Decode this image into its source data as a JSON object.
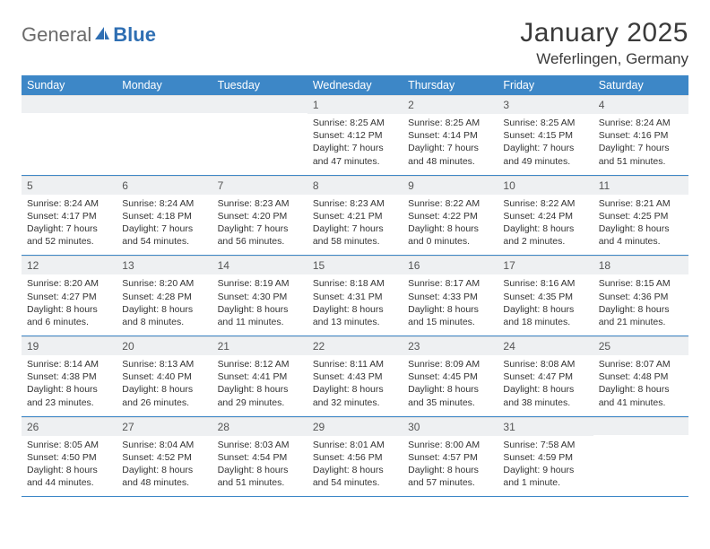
{
  "logo": {
    "general": "General",
    "blue": "Blue"
  },
  "title": "January 2025",
  "location": "Weferlingen, Germany",
  "colors": {
    "header_bg": "#3d87c7",
    "header_text": "#ffffff",
    "daynum_bg": "#eef0f2",
    "text": "#333333",
    "rule": "#3d87c7",
    "logo_gray": "#6b6b6b",
    "logo_blue": "#2f6fb3"
  },
  "fonts": {
    "title_size_pt": 30,
    "location_size_pt": 17,
    "dow_size_pt": 12.5,
    "daynum_size_pt": 12,
    "body_size_pt": 10.5
  },
  "days_of_week": [
    "Sunday",
    "Monday",
    "Tuesday",
    "Wednesday",
    "Thursday",
    "Friday",
    "Saturday"
  ],
  "weeks": [
    [
      {
        "n": "",
        "sr": "",
        "ss": "",
        "dl": ""
      },
      {
        "n": "",
        "sr": "",
        "ss": "",
        "dl": ""
      },
      {
        "n": "",
        "sr": "",
        "ss": "",
        "dl": ""
      },
      {
        "n": "1",
        "sr": "8:25 AM",
        "ss": "4:12 PM",
        "dl": "7 hours and 47 minutes."
      },
      {
        "n": "2",
        "sr": "8:25 AM",
        "ss": "4:14 PM",
        "dl": "7 hours and 48 minutes."
      },
      {
        "n": "3",
        "sr": "8:25 AM",
        "ss": "4:15 PM",
        "dl": "7 hours and 49 minutes."
      },
      {
        "n": "4",
        "sr": "8:24 AM",
        "ss": "4:16 PM",
        "dl": "7 hours and 51 minutes."
      }
    ],
    [
      {
        "n": "5",
        "sr": "8:24 AM",
        "ss": "4:17 PM",
        "dl": "7 hours and 52 minutes."
      },
      {
        "n": "6",
        "sr": "8:24 AM",
        "ss": "4:18 PM",
        "dl": "7 hours and 54 minutes."
      },
      {
        "n": "7",
        "sr": "8:23 AM",
        "ss": "4:20 PM",
        "dl": "7 hours and 56 minutes."
      },
      {
        "n": "8",
        "sr": "8:23 AM",
        "ss": "4:21 PM",
        "dl": "7 hours and 58 minutes."
      },
      {
        "n": "9",
        "sr": "8:22 AM",
        "ss": "4:22 PM",
        "dl": "8 hours and 0 minutes."
      },
      {
        "n": "10",
        "sr": "8:22 AM",
        "ss": "4:24 PM",
        "dl": "8 hours and 2 minutes."
      },
      {
        "n": "11",
        "sr": "8:21 AM",
        "ss": "4:25 PM",
        "dl": "8 hours and 4 minutes."
      }
    ],
    [
      {
        "n": "12",
        "sr": "8:20 AM",
        "ss": "4:27 PM",
        "dl": "8 hours and 6 minutes."
      },
      {
        "n": "13",
        "sr": "8:20 AM",
        "ss": "4:28 PM",
        "dl": "8 hours and 8 minutes."
      },
      {
        "n": "14",
        "sr": "8:19 AM",
        "ss": "4:30 PM",
        "dl": "8 hours and 11 minutes."
      },
      {
        "n": "15",
        "sr": "8:18 AM",
        "ss": "4:31 PM",
        "dl": "8 hours and 13 minutes."
      },
      {
        "n": "16",
        "sr": "8:17 AM",
        "ss": "4:33 PM",
        "dl": "8 hours and 15 minutes."
      },
      {
        "n": "17",
        "sr": "8:16 AM",
        "ss": "4:35 PM",
        "dl": "8 hours and 18 minutes."
      },
      {
        "n": "18",
        "sr": "8:15 AM",
        "ss": "4:36 PM",
        "dl": "8 hours and 21 minutes."
      }
    ],
    [
      {
        "n": "19",
        "sr": "8:14 AM",
        "ss": "4:38 PM",
        "dl": "8 hours and 23 minutes."
      },
      {
        "n": "20",
        "sr": "8:13 AM",
        "ss": "4:40 PM",
        "dl": "8 hours and 26 minutes."
      },
      {
        "n": "21",
        "sr": "8:12 AM",
        "ss": "4:41 PM",
        "dl": "8 hours and 29 minutes."
      },
      {
        "n": "22",
        "sr": "8:11 AM",
        "ss": "4:43 PM",
        "dl": "8 hours and 32 minutes."
      },
      {
        "n": "23",
        "sr": "8:09 AM",
        "ss": "4:45 PM",
        "dl": "8 hours and 35 minutes."
      },
      {
        "n": "24",
        "sr": "8:08 AM",
        "ss": "4:47 PM",
        "dl": "8 hours and 38 minutes."
      },
      {
        "n": "25",
        "sr": "8:07 AM",
        "ss": "4:48 PM",
        "dl": "8 hours and 41 minutes."
      }
    ],
    [
      {
        "n": "26",
        "sr": "8:05 AM",
        "ss": "4:50 PM",
        "dl": "8 hours and 44 minutes."
      },
      {
        "n": "27",
        "sr": "8:04 AM",
        "ss": "4:52 PM",
        "dl": "8 hours and 48 minutes."
      },
      {
        "n": "28",
        "sr": "8:03 AM",
        "ss": "4:54 PM",
        "dl": "8 hours and 51 minutes."
      },
      {
        "n": "29",
        "sr": "8:01 AM",
        "ss": "4:56 PM",
        "dl": "8 hours and 54 minutes."
      },
      {
        "n": "30",
        "sr": "8:00 AM",
        "ss": "4:57 PM",
        "dl": "8 hours and 57 minutes."
      },
      {
        "n": "31",
        "sr": "7:58 AM",
        "ss": "4:59 PM",
        "dl": "9 hours and 1 minute."
      },
      {
        "n": "",
        "sr": "",
        "ss": "",
        "dl": ""
      }
    ]
  ],
  "labels": {
    "sunrise": "Sunrise: ",
    "sunset": "Sunset: ",
    "daylight": "Daylight: "
  }
}
